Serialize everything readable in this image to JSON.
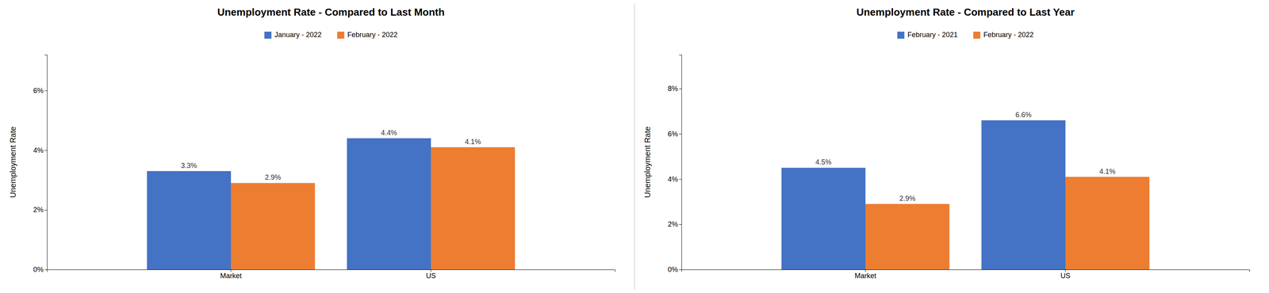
{
  "chart_data": [
    {
      "type": "bar",
      "title": "Unemployment Rate - Compared to Last Month",
      "ylabel": "Unemployment Rate",
      "categories": [
        "Market",
        "US"
      ],
      "series": [
        {
          "name": "January - 2022",
          "color": "#4472C4",
          "values": [
            3.3,
            4.4
          ],
          "value_labels": [
            "3.3%",
            "4.4%"
          ]
        },
        {
          "name": "February - 2022",
          "color": "#ED7D31",
          "values": [
            2.9,
            4.1
          ],
          "value_labels": [
            "2.9%",
            "4.1%"
          ]
        }
      ],
      "ylim": [
        0,
        7.2
      ],
      "yticks": [
        {
          "value": 0,
          "label": "0%"
        },
        {
          "value": 2,
          "label": "2%"
        },
        {
          "value": 4,
          "label": "4%"
        },
        {
          "value": 6,
          "label": "6%"
        }
      ],
      "grid": false,
      "legend": "top",
      "data_labels": true
    },
    {
      "type": "bar",
      "title": "Unemployment Rate - Compared to Last Year",
      "ylabel": "Unemployment Rate",
      "categories": [
        "Market",
        "US"
      ],
      "series": [
        {
          "name": "February - 2021",
          "color": "#4472C4",
          "values": [
            4.5,
            6.6
          ],
          "value_labels": [
            "4.5%",
            "6.6%"
          ]
        },
        {
          "name": "February - 2022",
          "color": "#ED7D31",
          "values": [
            2.9,
            4.1
          ],
          "value_labels": [
            "2.9%",
            "4.1%"
          ]
        }
      ],
      "ylim": [
        0,
        9.5
      ],
      "yticks": [
        {
          "value": 0,
          "label": "0%"
        },
        {
          "value": 2,
          "label": "2%"
        },
        {
          "value": 4,
          "label": "4%"
        },
        {
          "value": 6,
          "label": "6%"
        },
        {
          "value": 8,
          "label": "8%"
        }
      ],
      "grid": false,
      "legend": "top",
      "data_labels": true
    }
  ]
}
